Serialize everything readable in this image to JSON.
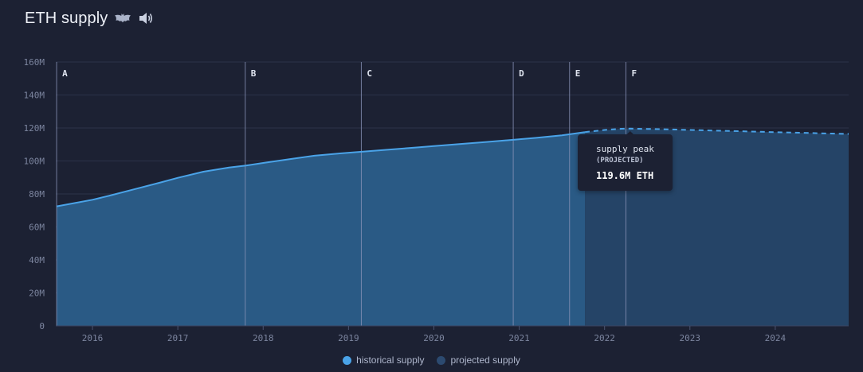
{
  "header": {
    "title": "ETH supply",
    "icons": [
      "bat-icon",
      "speaker-icon"
    ]
  },
  "colors": {
    "background": "#1c2133",
    "historical_line": "#4aa3e8",
    "historical_fill": "#2a5a85",
    "projected_fill": "#254467",
    "grid": "#2b3249",
    "event_line": "#8a94b8",
    "axis_text": "#7c859f"
  },
  "tooltip": {
    "title": "supply peak",
    "subtitle": "(PROJECTED)",
    "value": "119.6M ETH"
  },
  "legend": {
    "historical": "historical supply",
    "projected": "projected supply"
  },
  "chart_data": {
    "type": "area",
    "ylim": [
      0,
      160
    ],
    "y_ticks": [
      0,
      20,
      40,
      60,
      80,
      100,
      120,
      140,
      160
    ],
    "y_tick_labels": [
      "0",
      "20M",
      "40M",
      "60M",
      "80M",
      "100M",
      "120M",
      "140M",
      "160M"
    ],
    "xlim": [
      2015.57,
      2024.86
    ],
    "x_ticks": [
      2016,
      2017,
      2018,
      2019,
      2020,
      2021,
      2022,
      2023,
      2024
    ],
    "x_tick_labels": [
      "2016",
      "2017",
      "2018",
      "2019",
      "2020",
      "2021",
      "2022",
      "2023",
      "2024"
    ],
    "series": [
      {
        "name": "historical supply",
        "style": "solid",
        "x": [
          2015.58,
          2016.0,
          2016.2,
          2016.5,
          2016.8,
          2017.0,
          2017.3,
          2017.6,
          2017.8,
          2018.0,
          2018.3,
          2018.6,
          2018.9,
          2019.2,
          2019.5,
          2019.8,
          2020.0,
          2020.3,
          2020.6,
          2020.9,
          2021.2,
          2021.5,
          2021.77
        ],
        "y": [
          72.5,
          76.5,
          79.0,
          83.0,
          87.0,
          89.8,
          93.5,
          96.0,
          97.2,
          98.8,
          101.0,
          103.2,
          104.6,
          105.8,
          107.0,
          108.2,
          109.0,
          110.2,
          111.4,
          112.7,
          114.0,
          115.5,
          117.5
        ]
      },
      {
        "name": "projected supply",
        "style": "dashed",
        "x": [
          2021.77,
          2022.0,
          2022.2,
          2022.3,
          2022.5,
          2022.8,
          2023.0,
          2023.3,
          2023.6,
          2023.9,
          2024.2,
          2024.5,
          2024.86
        ],
        "y": [
          117.5,
          118.8,
          119.5,
          119.6,
          119.4,
          119.1,
          118.8,
          118.4,
          118.0,
          117.6,
          117.2,
          116.8,
          116.4
        ]
      }
    ],
    "events": [
      {
        "label": "A",
        "x": 2015.58
      },
      {
        "label": "B",
        "x": 2017.79
      },
      {
        "label": "C",
        "x": 2019.15
      },
      {
        "label": "D",
        "x": 2020.93
      },
      {
        "label": "E",
        "x": 2021.59
      },
      {
        "label": "F",
        "x": 2022.25
      }
    ],
    "annotation": {
      "x": 2022.3,
      "y": 119.6,
      "text": "supply peak (PROJECTED) 119.6M ETH"
    },
    "grid": true,
    "legend_position": "bottom-center"
  }
}
